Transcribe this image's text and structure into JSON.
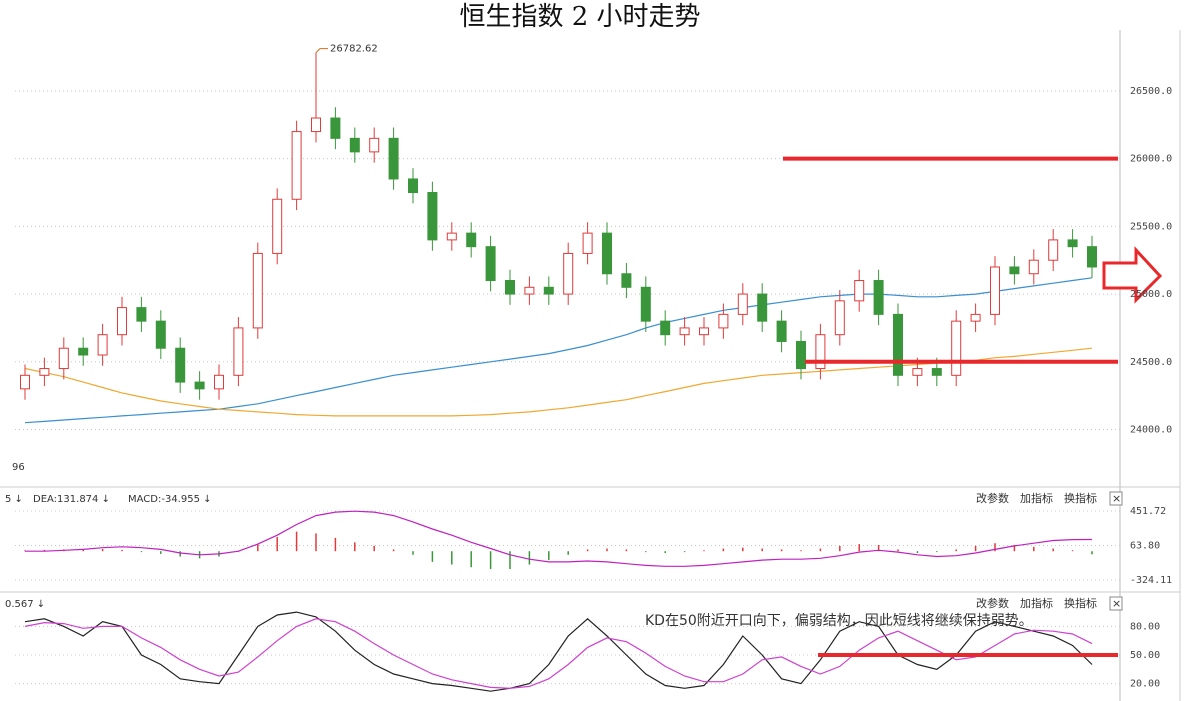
{
  "chart_data": [
    {
      "type": "candlestick",
      "title": "恒生指数 2 小时走势",
      "open": [
        24300,
        24400,
        24450,
        24600,
        24550,
        24700,
        24900,
        24800,
        24600,
        24350,
        24300,
        24400,
        24750,
        25300,
        25700,
        26200,
        26300,
        26150,
        26050,
        26150,
        25850,
        25750,
        25400,
        25450,
        25350,
        25100,
        25000,
        25050,
        25000,
        25300,
        25450,
        25150,
        25050,
        24800,
        24700,
        24700,
        24750,
        24850,
        25000,
        24800,
        24650,
        24450,
        24700,
        24950,
        25100,
        24850,
        24400,
        24450,
        24400,
        24800,
        24850,
        25200,
        25150,
        25250,
        25400,
        25350
      ],
      "high": [
        24480,
        24530,
        24680,
        24680,
        24780,
        24980,
        24980,
        24880,
        24680,
        24430,
        24480,
        24830,
        25380,
        25780,
        26280,
        26782.62,
        26380,
        26230,
        26230,
        26230,
        25930,
        25830,
        25530,
        25530,
        25430,
        25180,
        25130,
        25130,
        25380,
        25530,
        25530,
        25230,
        25130,
        24880,
        24830,
        24830,
        24930,
        25080,
        25080,
        24880,
        24730,
        24780,
        25030,
        25180,
        25180,
        24930,
        24530,
        24530,
        24880,
        24930,
        25280,
        25280,
        25330,
        25480,
        25480,
        25430
      ],
      "low": [
        24220,
        24320,
        24370,
        24470,
        24470,
        24620,
        24720,
        24520,
        24270,
        24220,
        24220,
        24320,
        24670,
        25220,
        25620,
        26120,
        26070,
        25970,
        25970,
        25770,
        25670,
        25320,
        25320,
        25270,
        25020,
        24920,
        24920,
        24920,
        24920,
        25220,
        25070,
        24970,
        24720,
        24620,
        24620,
        24620,
        24670,
        24770,
        24720,
        24570,
        24370,
        24370,
        24620,
        24870,
        24770,
        24320,
        24320,
        24320,
        24320,
        24720,
        24770,
        25070,
        25070,
        25170,
        25270,
        25120
      ],
      "close": [
        24400,
        24450,
        24600,
        24550,
        24700,
        24900,
        24800,
        24600,
        24350,
        24300,
        24400,
        24750,
        25300,
        25700,
        26200,
        26300,
        26150,
        26050,
        26150,
        25850,
        25750,
        25400,
        25450,
        25350,
        25100,
        25000,
        25050,
        25000,
        25300,
        25450,
        25150,
        25050,
        24800,
        24700,
        24750,
        24750,
        24850,
        25000,
        24800,
        24650,
        24450,
        24700,
        24950,
        25100,
        24850,
        24400,
        24450,
        24400,
        24800,
        24850,
        25200,
        25150,
        25250,
        25400,
        25350,
        25200
      ],
      "up_color": "#e03a3a",
      "down_color": "#3a963a",
      "series": [
        {
          "color": "#3a8fd0",
          "values": [
            24050,
            24060,
            24070,
            24080,
            24090,
            24100,
            24110,
            24120,
            24130,
            24140,
            24150,
            24170,
            24190,
            24220,
            24250,
            24280,
            24310,
            24340,
            24370,
            24400,
            24420,
            24440,
            24460,
            24480,
            24500,
            24520,
            24540,
            24560,
            24590,
            24620,
            24660,
            24700,
            24750,
            24790,
            24820,
            24850,
            24880,
            24900,
            24920,
            24940,
            24960,
            24980,
            24990,
            25000,
            25000,
            24990,
            24980,
            24980,
            24990,
            25000,
            25020,
            25040,
            25060,
            25080,
            25100,
            25120
          ]
        },
        {
          "color": "#f0a830",
          "values": [
            24450,
            24420,
            24390,
            24350,
            24310,
            24270,
            24240,
            24210,
            24190,
            24170,
            24150,
            24140,
            24130,
            24120,
            24110,
            24105,
            24100,
            24100,
            24100,
            24100,
            24100,
            24100,
            24100,
            24105,
            24110,
            24120,
            24130,
            24145,
            24160,
            24180,
            24200,
            24220,
            24250,
            24280,
            24310,
            24340,
            24360,
            24380,
            24400,
            24410,
            24420,
            24430,
            24440,
            24450,
            24460,
            24470,
            24480,
            24490,
            24500,
            24510,
            24530,
            24540,
            24555,
            24570,
            24585,
            24600
          ]
        }
      ],
      "levels": [
        26000,
        24500
      ],
      "level_color": "#e8282b",
      "left_label": "96",
      "ylim": [
        23590,
        26950
      ],
      "yticks": [
        {
          "value": 24000,
          "label": "24000.0"
        },
        {
          "value": 24500,
          "label": "24500.0"
        },
        {
          "value": 25000,
          "label": "25000.0"
        },
        {
          "value": 25500,
          "label": "25500.0"
        },
        {
          "value": 26000,
          "label": "26000.0"
        },
        {
          "value": 26500,
          "label": "26500.0"
        }
      ],
      "grid": true
    },
    {
      "type": "macd",
      "header": [
        {
          "text": "5 ↓",
          "color": "#222"
        },
        {
          "text": "DEA:131.874 ↓",
          "color": "#c020c0"
        },
        {
          "text": "MACD:-34.955 ↓",
          "color": "#555"
        }
      ],
      "buttons": [
        "改参数",
        "加指标",
        "换指标",
        "×"
      ],
      "bars": [
        10,
        15,
        20,
        20,
        25,
        15,
        -10,
        -30,
        -60,
        -80,
        -60,
        -10,
        80,
        160,
        220,
        200,
        150,
        100,
        60,
        20,
        -40,
        -120,
        -150,
        -180,
        -200,
        -200,
        -150,
        -100,
        -40,
        20,
        30,
        20,
        -10,
        -20,
        -10,
        10,
        30,
        40,
        30,
        20,
        10,
        30,
        60,
        80,
        70,
        20,
        -20,
        -10,
        20,
        60,
        90,
        70,
        50,
        30,
        10,
        -34.955
      ],
      "up_color": "#e03a3a",
      "down_color": "#3a963a",
      "series": [
        {
          "color": "#c020c0",
          "values": [
            0,
            0,
            10,
            20,
            40,
            50,
            40,
            20,
            -20,
            -40,
            -30,
            0,
            80,
            180,
            300,
            400,
            440,
            450,
            440,
            400,
            330,
            250,
            180,
            100,
            30,
            -40,
            -90,
            -120,
            -120,
            -110,
            -120,
            -140,
            -160,
            -170,
            -170,
            -160,
            -140,
            -120,
            -100,
            -90,
            -90,
            -80,
            -50,
            -10,
            10,
            -10,
            -40,
            -60,
            -50,
            -20,
            20,
            60,
            90,
            120,
            130,
            131.874
          ]
        }
      ],
      "ylim": [
        -436,
        688
      ],
      "yticks": [
        451.72,
        {
          "value": 63.8,
          "label": "63.80"
        },
        -324.11
      ],
      "grid": true
    },
    {
      "type": "kd",
      "header": [
        {
          "text": "0.567 ↓",
          "color": "#c020c0"
        }
      ],
      "buttons": [
        "改参数",
        "加指标",
        "换指标",
        "×"
      ],
      "annotation": "KD在50附近开口向下，偏弱结构，因此短线将继续保持弱势。",
      "series": [
        {
          "color": "#222222",
          "values": [
            85,
            88,
            80,
            70,
            85,
            80,
            50,
            40,
            25,
            22,
            20,
            50,
            80,
            92,
            95,
            90,
            75,
            55,
            40,
            30,
            25,
            20,
            18,
            15,
            12,
            15,
            20,
            40,
            70,
            88,
            70,
            50,
            30,
            18,
            15,
            18,
            40,
            70,
            50,
            25,
            20,
            45,
            75,
            85,
            80,
            50,
            40,
            35,
            50,
            75,
            85,
            80,
            75,
            70,
            60,
            40
          ]
        },
        {
          "color": "#d040d0",
          "values": [
            80,
            84,
            83,
            78,
            80,
            80,
            68,
            58,
            45,
            35,
            28,
            32,
            48,
            65,
            80,
            88,
            85,
            75,
            62,
            50,
            40,
            30,
            24,
            20,
            16,
            15,
            17,
            25,
            40,
            58,
            68,
            64,
            52,
            38,
            28,
            22,
            22,
            30,
            45,
            48,
            38,
            30,
            38,
            55,
            68,
            75,
            65,
            55,
            45,
            48,
            60,
            72,
            76,
            75,
            72,
            62
          ]
        }
      ],
      "levels": [
        50
      ],
      "level_color": "#e8282b",
      "ylim": [
        8,
        113
      ],
      "yticks": [
        {
          "value": 20,
          "label": "20.00"
        },
        {
          "value": 50,
          "label": "50.00"
        },
        {
          "value": 80,
          "label": "80.00"
        }
      ],
      "grid": true
    }
  ]
}
